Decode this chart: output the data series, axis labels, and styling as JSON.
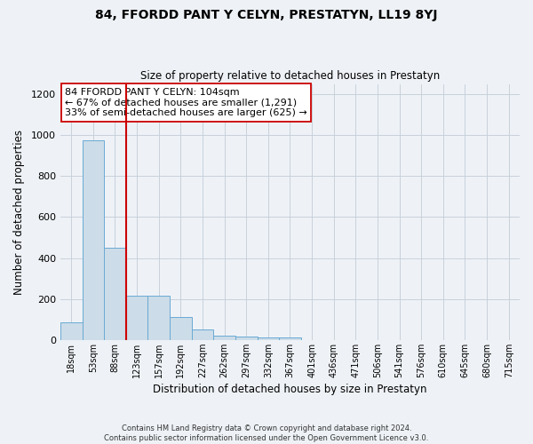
{
  "title": "84, FFORDD PANT Y CELYN, PRESTATYN, LL19 8YJ",
  "subtitle": "Size of property relative to detached houses in Prestatyn",
  "xlabel": "Distribution of detached houses by size in Prestatyn",
  "ylabel": "Number of detached properties",
  "bar_labels": [
    "18sqm",
    "53sqm",
    "88sqm",
    "123sqm",
    "157sqm",
    "192sqm",
    "227sqm",
    "262sqm",
    "297sqm",
    "332sqm",
    "367sqm",
    "401sqm",
    "436sqm",
    "471sqm",
    "506sqm",
    "541sqm",
    "576sqm",
    "610sqm",
    "645sqm",
    "680sqm",
    "715sqm"
  ],
  "bar_values": [
    85,
    975,
    450,
    215,
    215,
    110,
    50,
    22,
    18,
    12,
    10,
    0,
    0,
    0,
    0,
    0,
    0,
    0,
    0,
    0,
    0
  ],
  "bar_color": "#ccdce8",
  "bar_edge_color": "#6aaad4",
  "vline_x": 2.5,
  "vline_color": "#cc0000",
  "ylim": [
    0,
    1250
  ],
  "yticks": [
    0,
    200,
    400,
    600,
    800,
    1000,
    1200
  ],
  "annotation_line1": "84 FFORDD PANT Y CELYN: 104sqm",
  "annotation_line2": "← 67% of detached houses are smaller (1,291)",
  "annotation_line3": "33% of semi-detached houses are larger (625) →",
  "footer_line1": "Contains HM Land Registry data © Crown copyright and database right 2024.",
  "footer_line2": "Contains public sector information licensed under the Open Government Licence v3.0.",
  "background_color": "#eef2f6",
  "plot_bg_color": "#eef2f7",
  "grid_color": "#c8d0da"
}
